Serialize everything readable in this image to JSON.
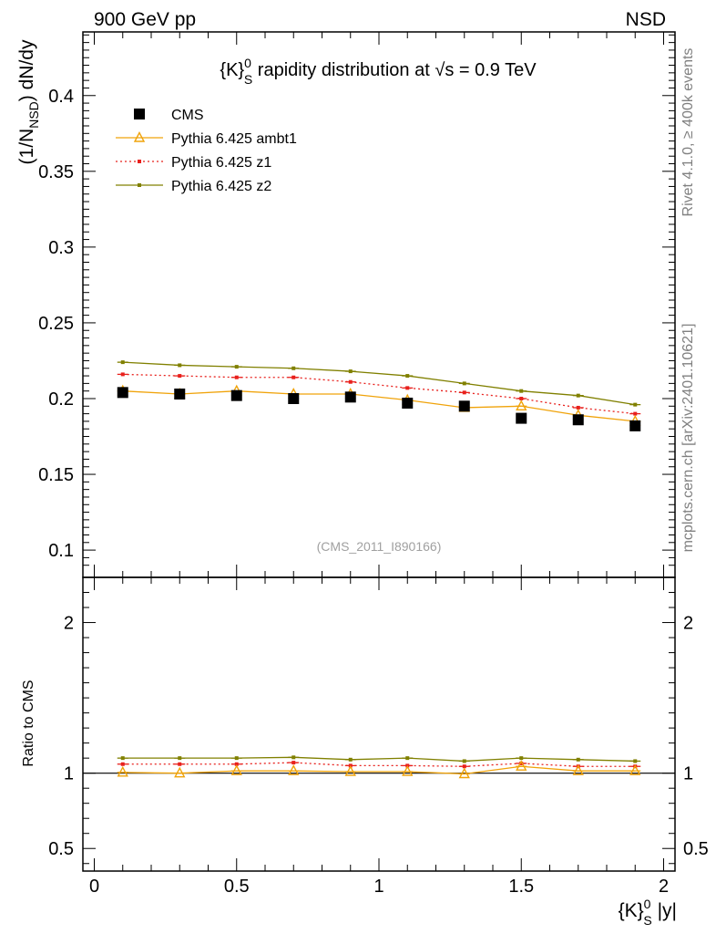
{
  "header": {
    "left": "900 GeV pp",
    "right": "NSD"
  },
  "side_labels": {
    "rivet": "Rivet 4.1.0, ≥ 400k events",
    "mcplots": "mcplots.cern.ch [arXiv:2401.10621]"
  },
  "chart_data": {
    "type": "line",
    "title": "{K}_S^0 rapidity distribution at √s = 0.9 TeV",
    "title_parts": {
      "pre": "{K}",
      "sup": "0",
      "sub": "S",
      "post": " rapidity distribution at ",
      "sqrt": "√s",
      "tail": " = 0.9 TeV"
    },
    "analysis_id": "(CMS_2011_I890166)",
    "xlabel": {
      "pre": "{K}",
      "sup": "0",
      "sub": "S",
      "post": " |y|"
    },
    "ylabel": {
      "pre": "(1/N",
      "sub": "NSD",
      "post": ") dN/dy"
    },
    "ratio_ylabel": "Ratio to CMS",
    "xlim": [
      -0.04,
      2.04
    ],
    "ylim": [
      0.082,
      0.442
    ],
    "ratio_ylim": [
      0.35,
      2.3
    ],
    "x_ticks": [
      0,
      0.5,
      1,
      1.5,
      2
    ],
    "x_tick_labels": [
      "0",
      "0.5",
      "1",
      "1.5",
      "2"
    ],
    "y_ticks": [
      0.1,
      0.15,
      0.2,
      0.25,
      0.3,
      0.35,
      0.4
    ],
    "y_tick_labels": [
      "0.1",
      "0.15",
      "0.2",
      "0.25",
      "0.3",
      "0.35",
      "0.4"
    ],
    "ratio_ticks": [
      0.5,
      1,
      2
    ],
    "ratio_tick_labels": [
      "0.5",
      "1",
      "2"
    ],
    "x": [
      0.1,
      0.3,
      0.5,
      0.7,
      0.9,
      1.1,
      1.3,
      1.5,
      1.7,
      1.9
    ],
    "series": [
      {
        "name": "CMS",
        "style": "data",
        "color": "#000000",
        "values": [
          0.204,
          0.203,
          0.202,
          0.2,
          0.201,
          0.197,
          0.195,
          0.187,
          0.186,
          0.182
        ],
        "ratio": [
          1.0,
          1.0,
          1.0,
          1.0,
          1.0,
          1.0,
          1.0,
          1.0,
          1.0,
          1.0
        ]
      },
      {
        "name": "Pythia 6.425 ambt1",
        "style": "triangle",
        "color": "#f0a30a",
        "values": [
          0.205,
          0.203,
          0.205,
          0.203,
          0.203,
          0.199,
          0.194,
          0.195,
          0.189,
          0.185
        ],
        "ratio": [
          1.005,
          1.0,
          1.015,
          1.015,
          1.01,
          1.01,
          0.995,
          1.045,
          1.015,
          1.015
        ]
      },
      {
        "name": "Pythia 6.425 z1",
        "style": "dotted",
        "color": "#e8201c",
        "values": [
          0.216,
          0.215,
          0.214,
          0.214,
          0.211,
          0.207,
          0.204,
          0.2,
          0.194,
          0.19
        ],
        "ratio": [
          1.06,
          1.06,
          1.06,
          1.07,
          1.05,
          1.05,
          1.045,
          1.065,
          1.045,
          1.045
        ]
      },
      {
        "name": "Pythia 6.425 z2",
        "style": "solid",
        "color": "#808000",
        "values": [
          0.224,
          0.222,
          0.221,
          0.22,
          0.218,
          0.215,
          0.21,
          0.205,
          0.202,
          0.196
        ],
        "ratio": [
          1.1,
          1.1,
          1.1,
          1.105,
          1.09,
          1.1,
          1.08,
          1.1,
          1.09,
          1.08
        ]
      }
    ]
  }
}
